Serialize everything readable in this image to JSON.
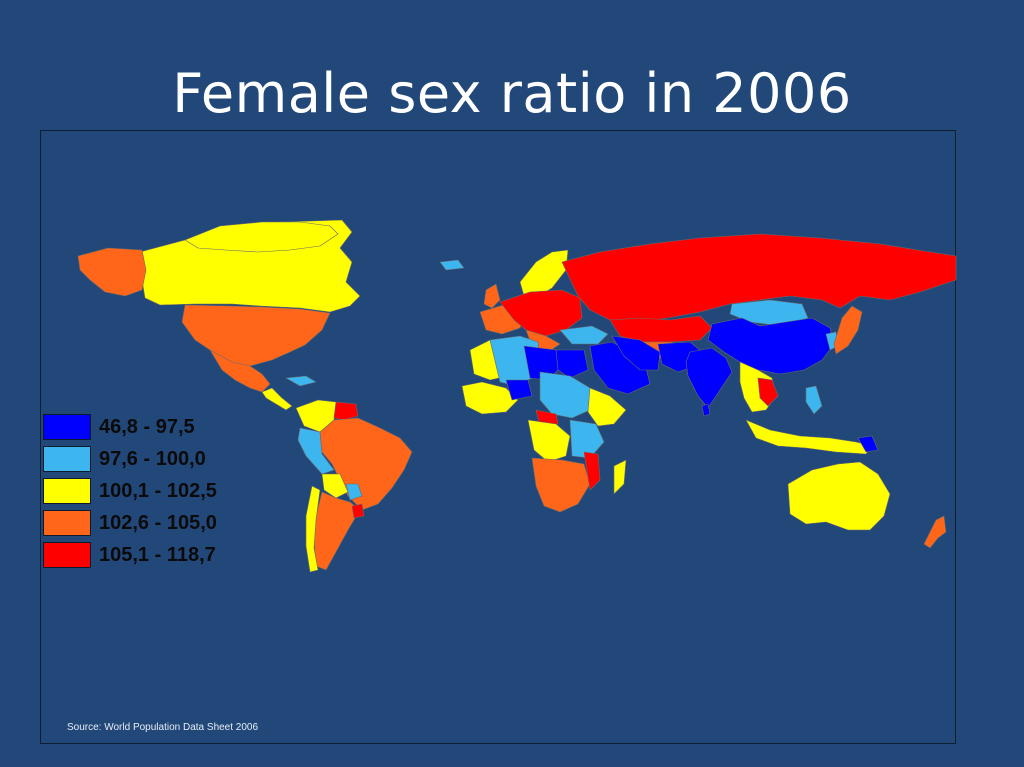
{
  "title": "Female sex ratio in 2006",
  "source": "Source: World Population Data Sheet 2006",
  "colors": {
    "background": "#22487a",
    "class_1": "#0000ff",
    "class_2": "#3db6f0",
    "class_3": "#ffff00",
    "class_4": "#ff6619",
    "class_5": "#ff0000"
  },
  "legend": [
    {
      "label": "46,8 - 97,5",
      "color": "#0000ff"
    },
    {
      "label": "97,6 - 100,0",
      "color": "#3db6f0"
    },
    {
      "label": "100,1 - 102,5",
      "color": "#ffff00"
    },
    {
      "label": "102,6 - 105,0",
      "color": "#ff6619"
    },
    {
      "label": "105,1 - 118,7",
      "color": "#ff0000"
    }
  ]
}
